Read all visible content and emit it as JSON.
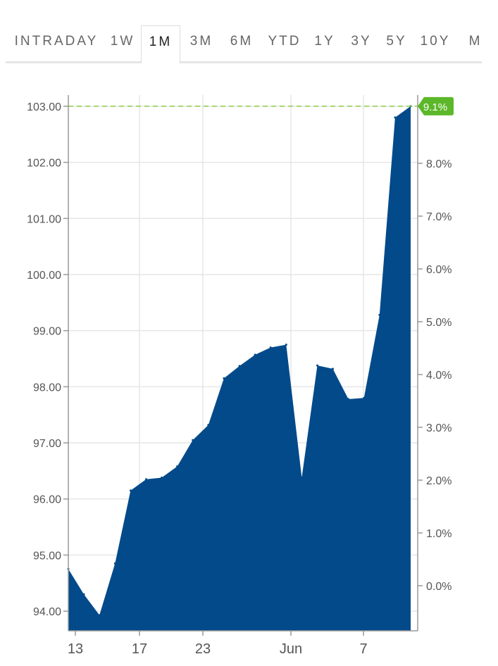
{
  "tabs": [
    {
      "label": "INTRADAY",
      "active": false
    },
    {
      "label": "1W",
      "active": false
    },
    {
      "label": "1M",
      "active": true
    },
    {
      "label": "3M",
      "active": false
    },
    {
      "label": "6M",
      "active": false
    },
    {
      "label": "YTD",
      "active": false
    },
    {
      "label": "1Y",
      "active": false
    },
    {
      "label": "3Y",
      "active": false
    },
    {
      "label": "5Y",
      "active": false
    },
    {
      "label": "10Y",
      "active": false
    },
    {
      "label": "M",
      "active": false
    }
  ],
  "chart_data": {
    "type": "area",
    "x_tick_labels": [
      "13",
      "17",
      "23",
      "Jun",
      "7"
    ],
    "y_left_ticks": [
      "94.00",
      "95.00",
      "96.00",
      "97.00",
      "98.00",
      "99.00",
      "100.00",
      "101.00",
      "102.00",
      "103.00"
    ],
    "y_right_ticks": [
      "0.0%",
      "1.0%",
      "2.0%",
      "3.0%",
      "4.0%",
      "5.0%",
      "6.0%",
      "7.0%",
      "8.0%"
    ],
    "ylim": [
      93.65,
      103.2
    ],
    "last_value": 103.0,
    "last_change_label": "9.1%",
    "series": [
      {
        "values": [
          94.75,
          94.3,
          93.93,
          94.85,
          96.15,
          96.35,
          96.38,
          96.58,
          97.05,
          97.32,
          98.15,
          98.37,
          98.57,
          98.7,
          98.75,
          96.38,
          98.38,
          98.32,
          97.78,
          97.8,
          99.28,
          102.8,
          103.0
        ]
      }
    ],
    "colors": {
      "area": "#024a8a",
      "reference_line": "#8ccf3f",
      "badge": "#5cb82a",
      "grid": "#e6e6e6",
      "axis": "#999999"
    }
  }
}
